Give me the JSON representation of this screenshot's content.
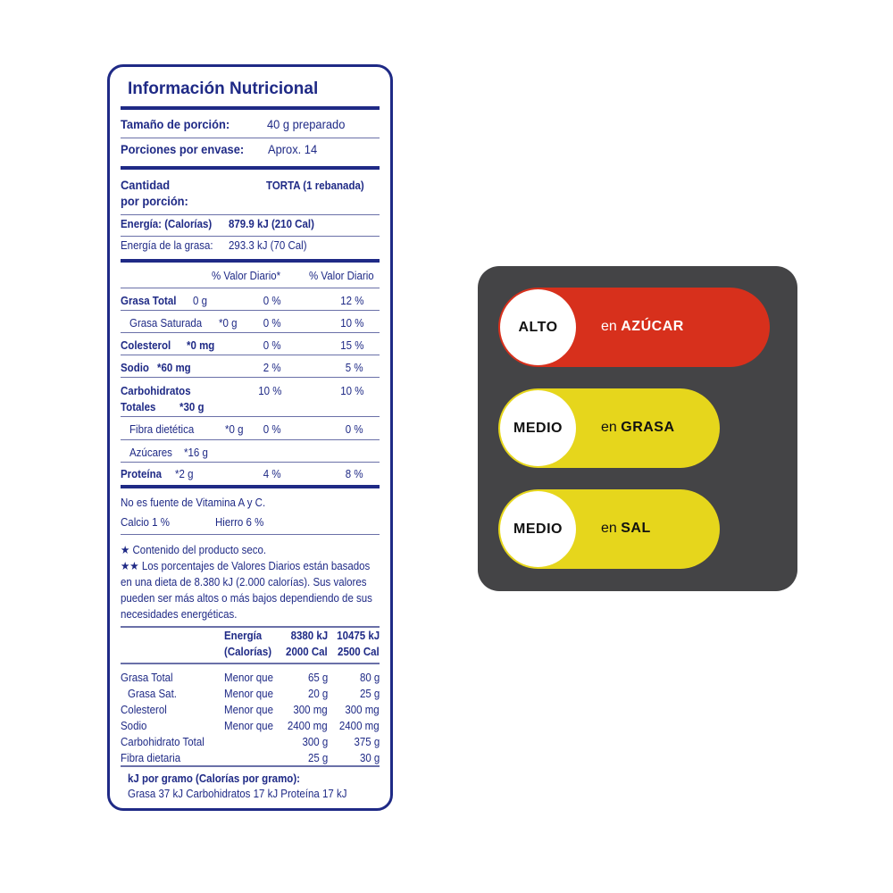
{
  "nutrition": {
    "title": "Información Nutricional",
    "serving_size_label": "Tamaño de porción:",
    "serving_size_value": "40 g preparado",
    "servings_label": "Porciones por envase:",
    "servings_value": "Aprox. 14",
    "amount_label_1": "Cantidad",
    "amount_label_2": "por porción:",
    "product_column": "TORTA  (1 rebanada)",
    "energy_label": "Energía: (Calorías)",
    "energy_value": "879.9 kJ  (210 Cal)",
    "fat_energy_label": "Energía de la grasa:",
    "fat_energy_value": "293.3 kJ  (70 Cal)",
    "dv_header_1": "% Valor Diario*",
    "dv_header_2": "% Valor Diario",
    "nutrients": [
      {
        "name": "Grasa Total",
        "amount": "0 g",
        "dv1": "0 %",
        "dv2": "12 %"
      },
      {
        "name": "Grasa Saturada",
        "amount": "*0 g",
        "dv1": "0 %",
        "dv2": "10 %"
      },
      {
        "name": "Colesterol",
        "amount": "*0 mg",
        "dv1": "0 %",
        "dv2": "15 %"
      },
      {
        "name": "Sodio",
        "amount": "*60 mg",
        "dv1": "2 %",
        "dv2": "5 %"
      },
      {
        "name": "Carbohidratos",
        "name2": "Totales",
        "amount": "*30 g",
        "dv1": "10 %",
        "dv2": "10 %"
      },
      {
        "name": "Fibra dietética",
        "amount": "*0 g",
        "dv1": "0 %",
        "dv2": "0 %"
      },
      {
        "name": "Azúcares",
        "amount": "*16 g",
        "dv1": "",
        "dv2": ""
      },
      {
        "name": "Proteína",
        "amount": "*2 g",
        "dv1": "4 %",
        "dv2": "8 %"
      }
    ],
    "vitamin_note": "No es fuente de Vitamina A y C.",
    "calcium": "Calcio  1 %",
    "iron": "Hierro  6 %",
    "footnote_1": "★ Contenido del producto seco.",
    "footnote_2_lines": [
      "★★ Los porcentajes de Valores Diarios están basados",
      "en una dieta de 8.380 kJ (2.000 calorías). Sus valores",
      "pueden ser más altos o más bajos dependiendo de sus",
      "necesidades energéticas."
    ],
    "ref_header": {
      "c1a": "Energía",
      "c1b": "(Calorías)",
      "c2a": "8380 kJ",
      "c2b": "2000 Cal",
      "c3a": "10475 kJ",
      "c3b": "2500 Cal"
    },
    "ref_rows": [
      {
        "name": "Grasa Total",
        "cond": "Menor que",
        "v1": "65 g",
        "v2": "80 g"
      },
      {
        "name": " Grasa Sat.",
        "cond": "Menor que",
        "v1": "20 g",
        "v2": "25 g"
      },
      {
        "name": "Colesterol",
        "cond": "Menor que",
        "v1": "300 mg",
        "v2": "300 mg"
      },
      {
        "name": "Sodio",
        "cond": "Menor que",
        "v1": "2400 mg",
        "v2": "2400 mg"
      },
      {
        "name": "Carbohidrato Total",
        "cond": "",
        "v1": "300 g",
        "v2": "375 g"
      },
      {
        "name": "Fibra dietaria",
        "cond": "",
        "v1": "25 g",
        "v2": "30 g"
      }
    ],
    "kj_per_gram_title": "kJ por gramo (Calorías por gramo):",
    "kj_per_gram_values": "Grasa  37 kJ   Carbohidratos  17 kJ   Proteína  17 kJ",
    "color": "#1f2a86"
  },
  "traffic_light": {
    "items": [
      {
        "level": "ALTO",
        "prefix": "en",
        "nutrient": "AZÚCAR",
        "color": "#d7301c"
      },
      {
        "level": "MEDIO",
        "prefix": "en",
        "nutrient": "GRASA",
        "color": "#e6d61c"
      },
      {
        "level": "MEDIO",
        "prefix": "en",
        "nutrient": "SAL",
        "color": "#e6d61c"
      }
    ],
    "background": "#444446"
  }
}
